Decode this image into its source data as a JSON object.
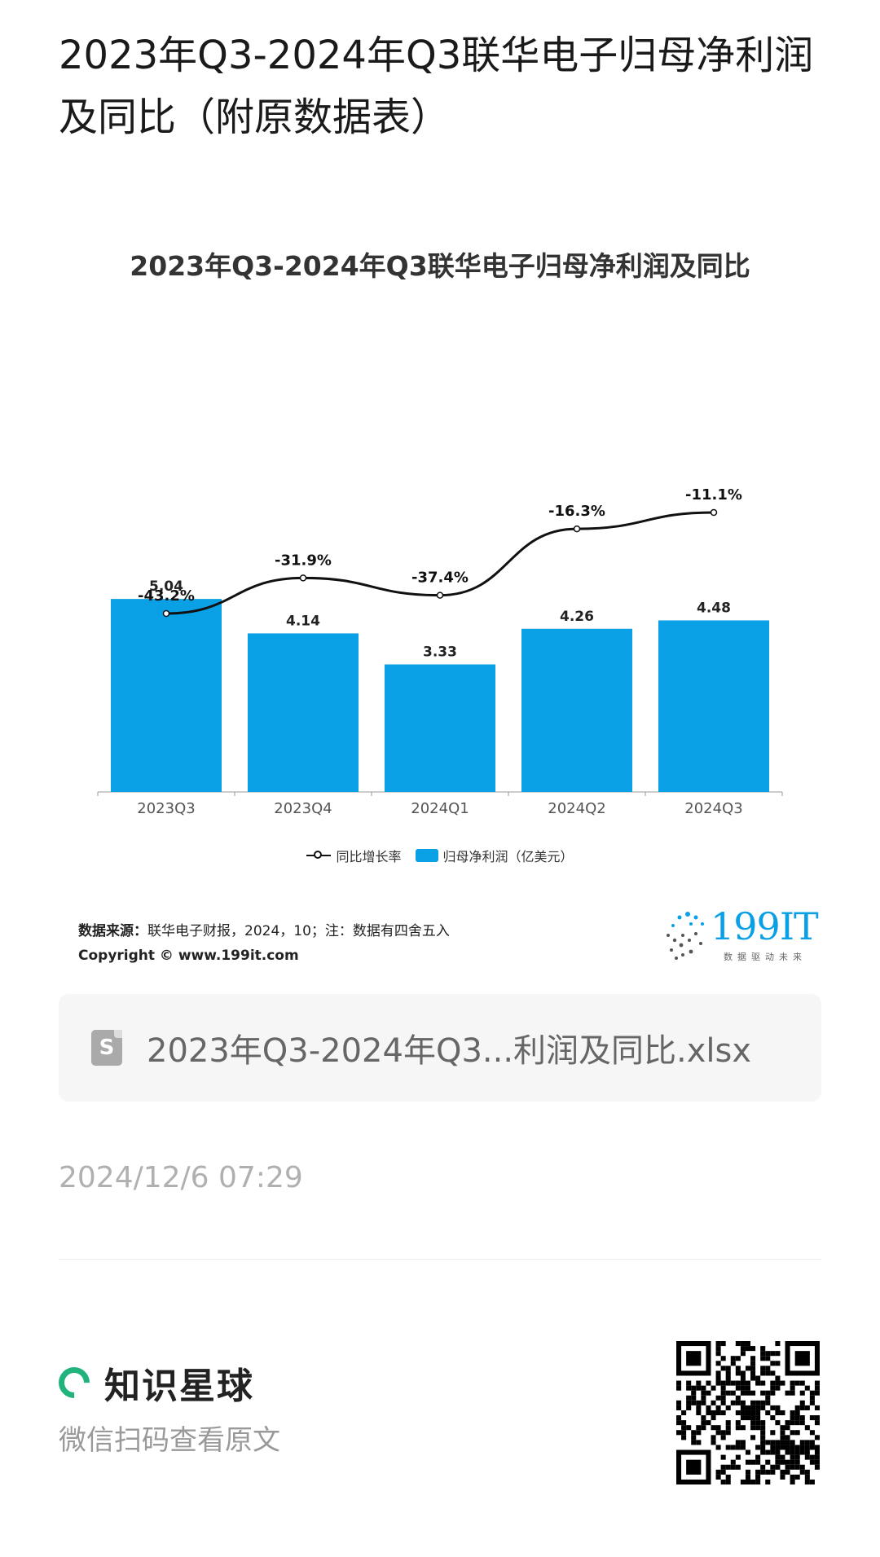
{
  "post": {
    "title": "2023年Q3-2024年Q3联华电子归母净利润及同比（附原数据表）",
    "timestamp": "2024/12/6 07:29"
  },
  "chart": {
    "title": "2023年Q3-2024年Q3联华电子归母净利润及同比",
    "source_label": "数据来源：",
    "source_text": "联华电子财报，2024，10；注：数据有四舍五入",
    "copyright": "Copyright © www.199it.com",
    "logo_text": "199IT",
    "logo_sub": "数据驱动未来"
  },
  "chart_data": {
    "type": "bar",
    "categories": [
      "2023Q3",
      "2023Q4",
      "2024Q1",
      "2024Q2",
      "2024Q3"
    ],
    "series": [
      {
        "name": "归母净利润（亿美元）",
        "type": "bar",
        "values": [
          5.04,
          4.14,
          3.33,
          4.26,
          4.48
        ],
        "labels": [
          "5.04",
          "4.14",
          "3.33",
          "4.26",
          "4.48"
        ],
        "color": "#0aa0e6"
      },
      {
        "name": "同比增长率",
        "type": "line",
        "values": [
          -43.2,
          -31.9,
          -37.4,
          -16.3,
          -11.1
        ],
        "labels": [
          "-43.2%",
          "-31.9%",
          "-37.4%",
          "-16.3%",
          "-11.1%"
        ],
        "color": "#111111"
      }
    ],
    "legend": {
      "position": "bottom"
    },
    "grid": false
  },
  "attachment": {
    "icon": "spreadsheet-file-icon",
    "icon_letter": "S",
    "filename": "2023年Q3-2024年Q3...利润及同比.xlsx"
  },
  "footer": {
    "brand_name": "知识星球",
    "scan_hint": "微信扫码查看原文",
    "qr_icon": "qr-code-icon"
  }
}
